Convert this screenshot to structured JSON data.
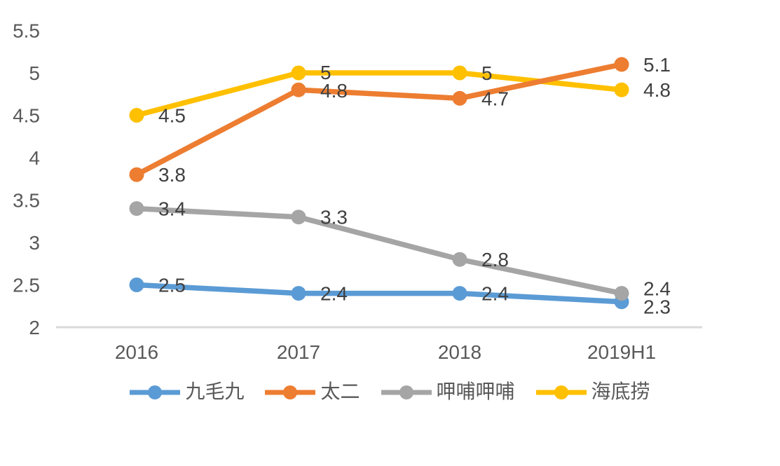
{
  "chart_data": {
    "type": "line",
    "categories": [
      "2016",
      "2017",
      "2018",
      "2019H1"
    ],
    "series": [
      {
        "name": "九毛九",
        "color": "#5B9BD5",
        "values": [
          2.5,
          2.4,
          2.4,
          2.3
        ],
        "point_labels": [
          "2.5",
          "2.4",
          "2.4",
          "2.3"
        ]
      },
      {
        "name": "太二",
        "color": "#ED7D31",
        "values": [
          3.8,
          4.8,
          4.7,
          5.1
        ],
        "point_labels": [
          "3.8",
          "4.8",
          "4.7",
          "5.1"
        ]
      },
      {
        "name": "呷哺呷哺",
        "color": "#A5A5A5",
        "values": [
          3.4,
          3.3,
          2.8,
          2.4
        ],
        "point_labels": [
          "3.4",
          "3.3",
          "2.8",
          "2.4"
        ]
      },
      {
        "name": "海底捞",
        "color": "#FFC000",
        "values": [
          4.5,
          5,
          5,
          4.8
        ],
        "point_labels": [
          "4.5",
          "5",
          "5",
          "4.8"
        ]
      }
    ],
    "y_axis": {
      "min": 2,
      "max": 5.5,
      "step": 0.5,
      "tick_labels": [
        "2",
        "2.5",
        "3",
        "3.5",
        "4",
        "4.5",
        "5",
        "5.5"
      ]
    },
    "grid": "off",
    "legend_position": "bottom",
    "legend_entries": [
      "九毛九",
      "太二",
      "呷哺呷哺",
      "海底捞"
    ],
    "draw_order": [
      "九毛九",
      "海底捞",
      "呷哺呷哺",
      "太二"
    ],
    "colors": {
      "axis_line": "#D9D9D9",
      "tick_text": "#595959",
      "data_label_text": "#404040",
      "legend_text": "#595959",
      "background": "#FFFFFF"
    }
  }
}
